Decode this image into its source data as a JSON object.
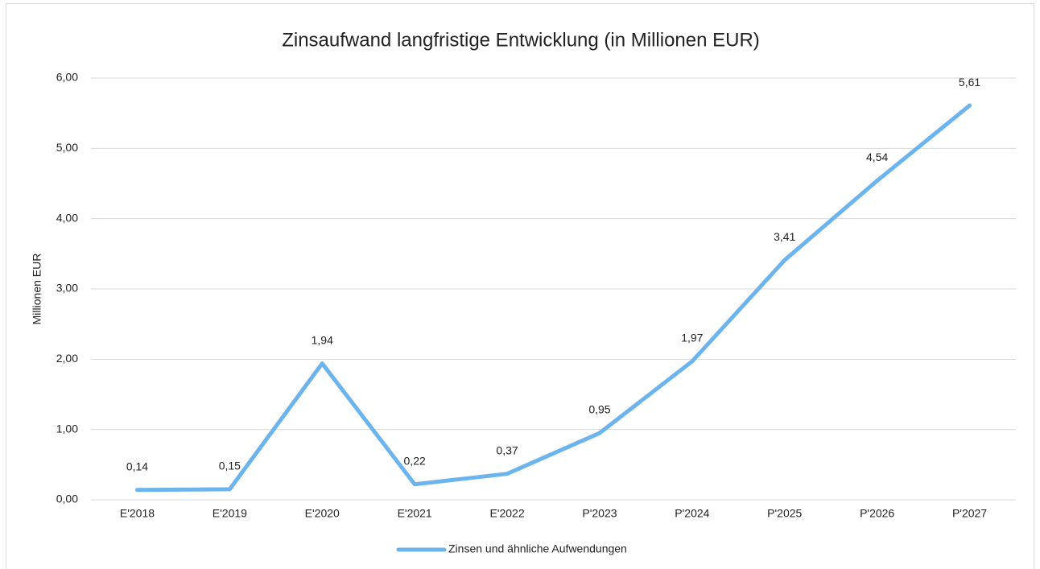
{
  "chart_data": {
    "type": "line",
    "title": "Zinsaufwand langfristige Entwicklung (in Millionen EUR)",
    "y_label": "Millionen EUR",
    "categories": [
      "E'2018",
      "E'2019",
      "E'2020",
      "E'2021",
      "E'2022",
      "P'2023",
      "P'2024",
      "P'2025",
      "P'2026",
      "P'2027"
    ],
    "series": [
      {
        "name": "Zinsen und ähnliche Aufwendungen",
        "color": "#6cb4ee",
        "values": [
          0.14,
          0.15,
          1.94,
          0.22,
          0.37,
          0.95,
          1.97,
          3.41,
          4.54,
          5.61
        ],
        "value_labels": [
          "0,14",
          "0,15",
          "1,94",
          "0,22",
          "0,37",
          "0,95",
          "1,97",
          "3,41",
          "4,54",
          "5,61"
        ]
      }
    ],
    "ylim": [
      0,
      6
    ],
    "yticks": [
      {
        "value": 0,
        "label": "0,00"
      },
      {
        "value": 1,
        "label": "1,00"
      },
      {
        "value": 2,
        "label": "2,00"
      },
      {
        "value": 3,
        "label": "3,00"
      },
      {
        "value": 4,
        "label": "4,00"
      },
      {
        "value": 5,
        "label": "5,00"
      },
      {
        "value": 6,
        "label": "6,00"
      }
    ],
    "grid": true,
    "legend": "bottom"
  }
}
